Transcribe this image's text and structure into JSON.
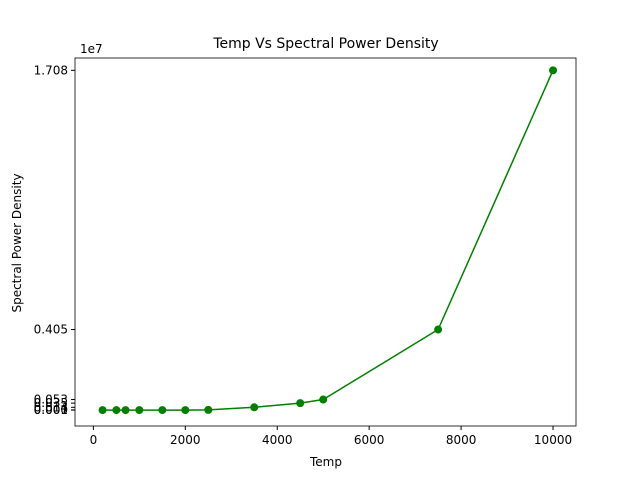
{
  "chart_data": {
    "type": "line",
    "title": "Temp Vs Spectral Power Density",
    "x_label": "Temp",
    "y_label": "Spectral Power Density",
    "offset_label": "1e7",
    "x": [
      200,
      500,
      700,
      1000,
      1500,
      2000,
      2500,
      3500,
      4500,
      5000,
      7500,
      10000
    ],
    "series": [
      {
        "name": "Spectral Power Density",
        "color": "#008000",
        "values": [
          0.0,
          0.0,
          0.0,
          0.0,
          0.0,
          0.0,
          0.001,
          0.014,
          0.035,
          0.053,
          0.405,
          1.708
        ]
      }
    ],
    "xlim": [
      -400,
      10500
    ],
    "xticks": [
      0,
      2000,
      4000,
      6000,
      8000,
      10000
    ],
    "ylim": [
      -0.08,
      1.77
    ],
    "yticks": [
      {
        "value": 0,
        "label": "0.000"
      },
      0.001,
      0.014,
      0.035,
      0.053,
      0.405,
      1.708
    ],
    "grid": false,
    "marker": "o"
  }
}
